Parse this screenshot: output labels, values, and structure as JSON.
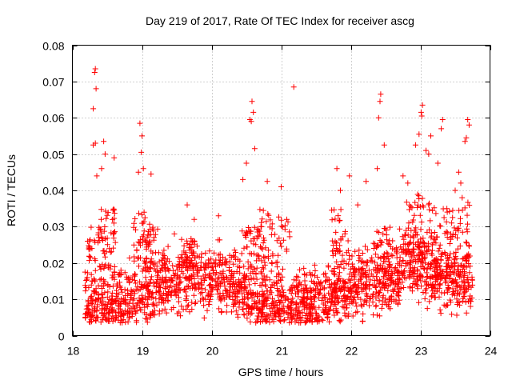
{
  "chart_data": {
    "type": "scatter",
    "title": "Day 219 of 2017, Rate Of TEC Index for receiver ascg",
    "xlabel": "GPS time / hours",
    "ylabel": "ROTI / TECUs",
    "xlim": [
      18,
      24
    ],
    "ylim": [
      0,
      0.08
    ],
    "xticks": [
      "18",
      "19",
      "20",
      "21",
      "22",
      "23",
      "24"
    ],
    "yticks": [
      "0",
      "0.01",
      "0.02",
      "0.03",
      "0.04",
      "0.05",
      "0.06",
      "0.07",
      "0.08"
    ],
    "grid": true,
    "marker": "+",
    "color": "#ff0000",
    "x_range_of_data": [
      18.18,
      23.75
    ],
    "series": [
      {
        "name": "ROTI",
        "points": [
          [
            18.33,
            0.0735
          ],
          [
            18.32,
            0.0725
          ],
          [
            18.34,
            0.068
          ],
          [
            18.3,
            0.0625
          ],
          [
            18.3,
            0.0525
          ],
          [
            18.33,
            0.053
          ],
          [
            18.45,
            0.0535
          ],
          [
            18.47,
            0.05
          ],
          [
            18.42,
            0.046
          ],
          [
            18.6,
            0.049
          ],
          [
            18.97,
            0.0585
          ],
          [
            19.0,
            0.055
          ],
          [
            18.99,
            0.0505
          ],
          [
            18.95,
            0.045
          ],
          [
            19.02,
            0.046
          ],
          [
            19.13,
            0.0445
          ],
          [
            20.58,
            0.0645
          ],
          [
            20.6,
            0.0615
          ],
          [
            20.55,
            0.0595
          ],
          [
            20.57,
            0.059
          ],
          [
            20.62,
            0.0515
          ],
          [
            20.5,
            0.0475
          ],
          [
            21.18,
            0.0685
          ],
          [
            22.43,
            0.0665
          ],
          [
            22.42,
            0.0645
          ],
          [
            22.4,
            0.06
          ],
          [
            22.48,
            0.0525
          ],
          [
            22.38,
            0.046
          ],
          [
            23.03,
            0.0635
          ],
          [
            23.01,
            0.0615
          ],
          [
            23.02,
            0.0605
          ],
          [
            22.98,
            0.0555
          ],
          [
            22.93,
            0.0525
          ],
          [
            23.15,
            0.055
          ],
          [
            23.12,
            0.05
          ],
          [
            23.32,
            0.0595
          ],
          [
            23.3,
            0.057
          ],
          [
            23.68,
            0.0595
          ],
          [
            23.7,
            0.058
          ],
          [
            23.66,
            0.0545
          ],
          [
            23.64,
            0.0535
          ],
          [
            23.08,
            0.051
          ],
          [
            23.25,
            0.0475
          ],
          [
            21.8,
            0.046
          ],
          [
            21.98,
            0.044
          ],
          [
            22.22,
            0.0425
          ],
          [
            20.45,
            0.043
          ],
          [
            20.8,
            0.0425
          ],
          [
            21.0,
            0.041
          ],
          [
            20.1,
            0.033
          ],
          [
            19.65,
            0.036
          ],
          [
            19.75,
            0.032
          ],
          [
            18.22,
            0.026
          ],
          [
            18.35,
            0.044
          ],
          [
            18.28,
            0.024
          ],
          [
            23.55,
            0.045
          ],
          [
            23.58,
            0.042
          ],
          [
            23.5,
            0.04
          ],
          [
            22.75,
            0.044
          ],
          [
            22.82,
            0.042
          ],
          [
            21.85,
            0.04
          ],
          [
            22.1,
            0.036
          ],
          [
            23.45,
            0.031
          ],
          [
            23.38,
            0.035
          ],
          [
            23.6,
            0.038
          ]
        ]
      }
    ]
  }
}
